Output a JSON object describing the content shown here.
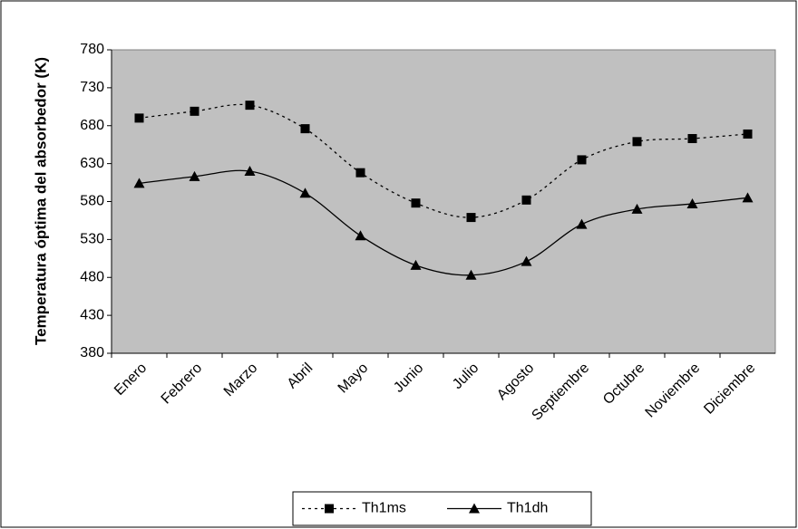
{
  "chart_data": {
    "type": "line",
    "y_label": "Temperatura óptima del absorbedor (K)",
    "categories": [
      "Enero",
      "Febrero",
      "Marzo",
      "Abril",
      "Mayo",
      "Junio",
      "Julio",
      "Agosto",
      "Septiembre",
      "Octubre",
      "Noviembre",
      "Diciembre"
    ],
    "series": [
      {
        "name": "Th1ms",
        "color": "#000000",
        "line_style": "dashed",
        "marker": "square",
        "values": [
          690,
          699,
          707,
          676,
          618,
          578,
          559,
          582,
          635,
          659,
          663,
          669
        ]
      },
      {
        "name": "Th1dh",
        "color": "#000000",
        "line_style": "solid",
        "marker": "triangle",
        "values": [
          604,
          613,
          620,
          591,
          535,
          496,
          483,
          501,
          550,
          570,
          577,
          585
        ]
      }
    ],
    "ylim": [
      380,
      780
    ],
    "yticks": [
      380,
      430,
      480,
      530,
      580,
      630,
      680,
      730,
      780
    ],
    "grid": false,
    "plot_background": "#c0c0c0",
    "legend": "bottom"
  }
}
